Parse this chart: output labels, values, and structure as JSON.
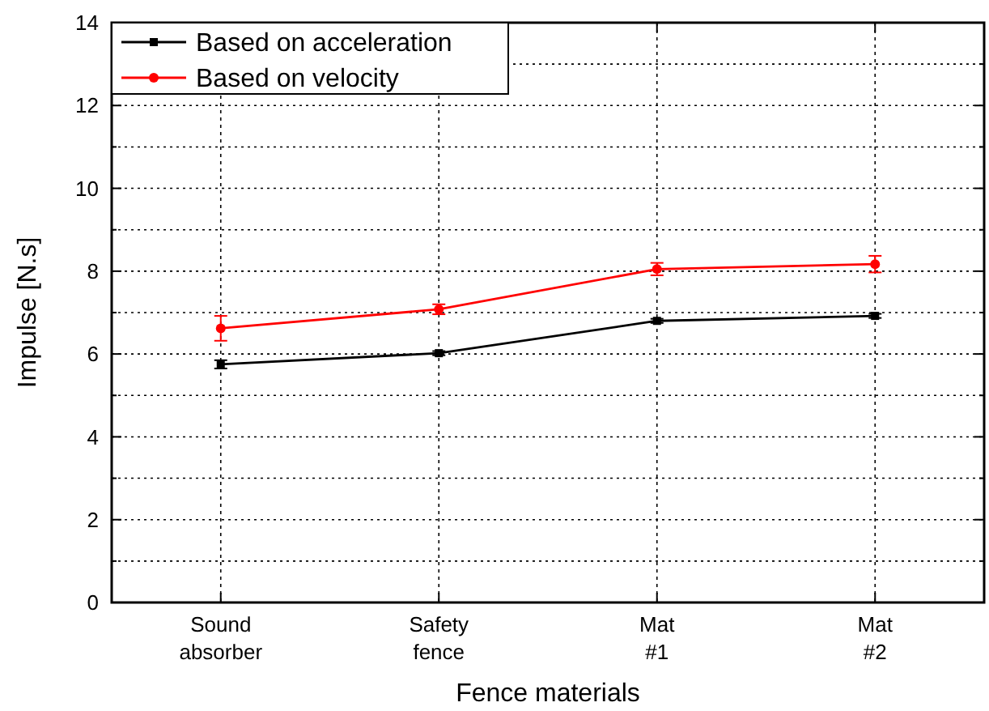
{
  "chart_data": {
    "type": "line",
    "xlabel": "Fence materials",
    "ylabel": "Impulse [N.s]",
    "categories": [
      "Sound\nabsorber",
      "Safety\nfence",
      "Mat\n#1",
      "Mat\n#2"
    ],
    "series": [
      {
        "name": "Based on acceleration",
        "color": "#000000",
        "values": [
          5.75,
          6.02,
          6.8,
          6.92
        ],
        "errors": [
          0.1,
          0.05,
          0.05,
          0.05
        ],
        "marker": "square"
      },
      {
        "name": "Based on velocity",
        "color": "#ff0000",
        "values": [
          6.62,
          7.08,
          8.05,
          8.17
        ],
        "errors": [
          0.3,
          0.12,
          0.15,
          0.2
        ],
        "marker": "circle"
      }
    ],
    "ylim": [
      0,
      14
    ],
    "yticks": [
      0,
      {
        "value": 1,
        "label": null
      },
      2,
      {
        "value": 3,
        "label": null
      },
      4,
      {
        "value": 5,
        "label": null
      },
      6,
      {
        "value": 7,
        "label": null
      },
      8,
      {
        "value": 9,
        "label": null
      },
      10,
      {
        "value": 11,
        "label": null
      },
      12,
      {
        "value": 13,
        "label": null
      },
      14
    ],
    "grid": true,
    "legend": "top left",
    "line_style": "solid"
  }
}
